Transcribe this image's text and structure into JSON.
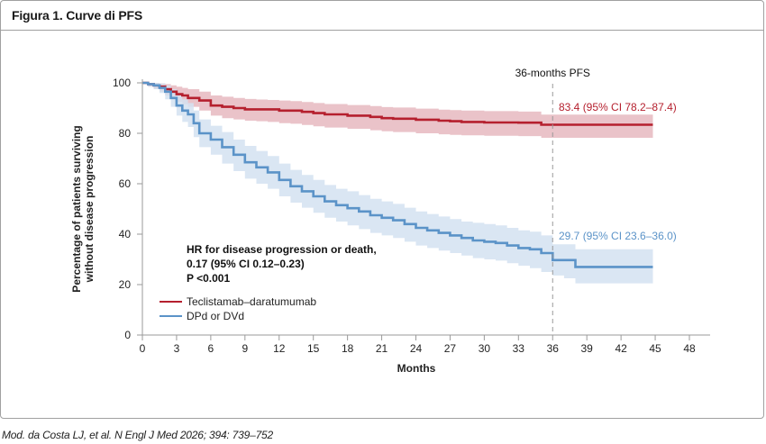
{
  "header": {
    "title": "Figura 1. Curve di PFS"
  },
  "caption": "Mod. da Costa LJ, et al. N Engl J Med 2026; 394: 739–752",
  "chart_data": {
    "type": "line",
    "title": "Figura 1. Curve di PFS",
    "xlabel": "Months",
    "ylabel": "Percentage of patients surviving without disease progression",
    "xlim": [
      0,
      48
    ],
    "ylim": [
      0,
      100
    ],
    "xticks": [
      0,
      3,
      6,
      9,
      12,
      15,
      18,
      21,
      24,
      27,
      30,
      33,
      36,
      39,
      42,
      45,
      48
    ],
    "yticks": [
      0,
      20,
      40,
      60,
      80,
      100
    ],
    "grid": false,
    "legend_position": "lower-left",
    "reference_line": {
      "x": 36,
      "label": "36-months PFS",
      "style": "dashed"
    },
    "annotations": [
      {
        "text": "HR for disease progression or death,",
        "line": 1
      },
      {
        "text": "0.17 (95% CI 0.12–0.23)",
        "line": 2
      },
      {
        "text": "P <0.001",
        "line": 3
      }
    ],
    "series": [
      {
        "name": "Teclistamab–daratumumab",
        "color": "#b5202e",
        "band_color": "#e6b8bf",
        "label_36m": "83.4 (95% CI 78.2–87.4)",
        "value_36m": 83.4,
        "ci_36m": [
          78.2,
          87.4
        ],
        "x": [
          0,
          0.5,
          1,
          1.5,
          2,
          2.5,
          3,
          3.5,
          4,
          5,
          6,
          7,
          8,
          9,
          10,
          11,
          12,
          13,
          14,
          15,
          16,
          18,
          20,
          21,
          22,
          24,
          26,
          27,
          28,
          30,
          33,
          35,
          36,
          40,
          44.8
        ],
        "y": [
          100,
          99.5,
          99,
          98.5,
          97.5,
          96.5,
          95.5,
          95,
          94,
          93,
          91,
          90.5,
          90,
          89.5,
          89.5,
          89.5,
          89,
          89,
          88.5,
          88,
          87.5,
          87,
          86.5,
          86,
          85.8,
          85.4,
          85,
          84.8,
          84.5,
          84.3,
          84.2,
          83.4,
          83.4,
          83.4,
          83.4
        ],
        "lower": [
          100,
          98.5,
          97.5,
          96.5,
          95,
          93.5,
          92.5,
          91.5,
          90.5,
          89,
          87,
          86,
          85.5,
          85,
          84.8,
          84.5,
          84,
          83.8,
          83.3,
          82.8,
          82.3,
          81.8,
          81.2,
          80.8,
          80.5,
          80,
          79.6,
          79.4,
          79.2,
          79,
          78.9,
          78.2,
          78.2,
          78.2,
          78.2
        ],
        "upper": [
          100,
          100,
          100,
          99.8,
          99.5,
          99,
          98.5,
          98,
          97.5,
          96.5,
          95,
          94.5,
          94,
          93.6,
          93.4,
          93.2,
          93,
          92.8,
          92.4,
          92,
          91.6,
          91.2,
          90.8,
          90.4,
          90.2,
          89.8,
          89.4,
          89.2,
          89,
          88.8,
          88.6,
          87.4,
          87.4,
          87.4,
          87.4
        ]
      },
      {
        "name": "DPd or DVd",
        "color": "#5b93c8",
        "band_color": "#d3e2f1",
        "label_36m": "29.7 (95% CI 23.6–36.0)",
        "value_36m": 29.7,
        "ci_36m": [
          23.6,
          36.0
        ],
        "x": [
          0,
          0.5,
          1,
          1.5,
          2,
          2.5,
          3,
          3.5,
          4,
          4.5,
          5,
          6,
          7,
          8,
          9,
          10,
          11,
          12,
          13,
          14,
          15,
          16,
          17,
          18,
          19,
          20,
          21,
          22,
          23,
          24,
          25,
          26,
          27,
          28,
          29,
          30,
          31,
          32,
          33,
          34,
          35,
          36,
          37,
          38,
          40,
          44.8
        ],
        "y": [
          100,
          99.5,
          99,
          98,
          96.5,
          94,
          91,
          89,
          87.5,
          84,
          80,
          77.5,
          74.5,
          71.5,
          68.5,
          66.5,
          64.5,
          61.5,
          59,
          57,
          55,
          53,
          51.5,
          50.3,
          49,
          47.5,
          46.5,
          45.5,
          44,
          42.5,
          41.5,
          40.5,
          39.5,
          38.5,
          37.5,
          37,
          36.5,
          35.5,
          34.5,
          34,
          32.5,
          29.7,
          29.7,
          27,
          27,
          27
        ],
        "lower": [
          100,
          98.5,
          97.5,
          96,
          93.5,
          90.5,
          87,
          84.5,
          82.5,
          78.5,
          74.5,
          71.5,
          68,
          65,
          62,
          60,
          58,
          55,
          52.5,
          50.5,
          48.5,
          46.5,
          45,
          43.5,
          42,
          40.5,
          39.5,
          38.5,
          37,
          35.5,
          34.5,
          33.5,
          32.5,
          31.5,
          30.5,
          30,
          29.5,
          28.5,
          27.5,
          26.5,
          25,
          23.6,
          22.5,
          20.5,
          20.5,
          20.5
        ],
        "upper": [
          100,
          100,
          100,
          99.8,
          99,
          97.5,
          95,
          93.5,
          92,
          89,
          85.5,
          83,
          80.5,
          77.5,
          75,
          73,
          71,
          68,
          65.5,
          63.5,
          61.5,
          59.5,
          58,
          57,
          55.5,
          54,
          53,
          52,
          50.5,
          49,
          48,
          47,
          46,
          45,
          44.5,
          44,
          43.5,
          42.5,
          41.5,
          41,
          39.5,
          36.0,
          36.0,
          34,
          34,
          34
        ]
      }
    ]
  }
}
